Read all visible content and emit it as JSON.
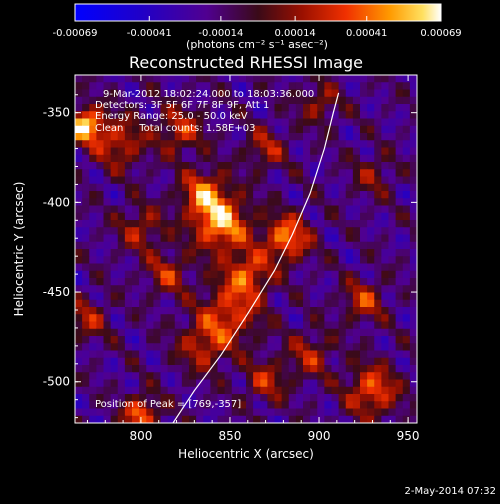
{
  "chart_data": {
    "type": "heatmap",
    "title": "Reconstructed RHESSI Image",
    "xlabel": "Heliocentric X (arcsec)",
    "ylabel": "Heliocentric Y (arcsec)",
    "xlim": [
      763,
      955
    ],
    "ylim": [
      -523,
      -329
    ],
    "x_ticks": [
      800,
      850,
      900,
      950
    ],
    "y_ticks": [
      -350,
      -400,
      -450,
      -500
    ],
    "colorbar": {
      "units": "(photons cm⁻² s⁻¹ asec⁻²)",
      "range": [
        -0.00069,
        0.00069
      ],
      "ticks": [
        -0.00069,
        -0.00041,
        -0.00014,
        0.00014,
        0.00041,
        0.00069
      ],
      "tick_labels": [
        "-0.00069",
        "-0.00041",
        "-0.00014",
        "0.00014",
        "0.00041",
        "0.00069"
      ]
    },
    "annotations": [
      "9-Mar-2012 18:02:24.000 to 18:03:36.000",
      "Detectors: 3F 5F 6F 7F 8F 9F, Att 1",
      "Energy Range: 25.0 - 50.0 keV",
      "Clean     Total counts: 1.58E+03",
      "Position of Peak = [769,-357]"
    ],
    "peak": {
      "x": 769,
      "y": -357
    },
    "limb_curve": [
      [
        818,
        -523
      ],
      [
        830,
        -505
      ],
      [
        845,
        -485
      ],
      [
        860,
        -462
      ],
      [
        875,
        -438
      ],
      [
        885,
        -418
      ],
      [
        895,
        -395
      ],
      [
        903,
        -370
      ],
      [
        908,
        -350
      ],
      [
        911,
        -339
      ]
    ],
    "sources": [
      {
        "x": 769,
        "y": -357,
        "amp": 1.0,
        "r": 7
      },
      {
        "x": 788,
        "y": -367,
        "amp": 0.55,
        "r": 10
      },
      {
        "x": 845,
        "y": -412,
        "amp": 0.9,
        "r": 11
      },
      {
        "x": 835,
        "y": -395,
        "amp": 0.7,
        "r": 9
      },
      {
        "x": 882,
        "y": -420,
        "amp": 0.8,
        "r": 9
      },
      {
        "x": 860,
        "y": -440,
        "amp": 0.65,
        "r": 9
      },
      {
        "x": 850,
        "y": -462,
        "amp": 0.6,
        "r": 12
      },
      {
        "x": 835,
        "y": -480,
        "amp": 0.5,
        "r": 10
      },
      {
        "x": 800,
        "y": -518,
        "amp": 0.75,
        "r": 7
      },
      {
        "x": 930,
        "y": -505,
        "amp": 0.7,
        "r": 10
      },
      {
        "x": 925,
        "y": -455,
        "amp": 0.55,
        "r": 8
      },
      {
        "x": 822,
        "y": -360,
        "amp": 0.55,
        "r": 9
      },
      {
        "x": 800,
        "y": -415,
        "amp": 0.45,
        "r": 9
      },
      {
        "x": 870,
        "y": -370,
        "amp": 0.45,
        "r": 8
      },
      {
        "x": 900,
        "y": -345,
        "amp": 0.4,
        "r": 8
      },
      {
        "x": 930,
        "y": -385,
        "amp": 0.35,
        "r": 8
      },
      {
        "x": 770,
        "y": -465,
        "amp": 0.45,
        "r": 8
      },
      {
        "x": 895,
        "y": -485,
        "amp": 0.45,
        "r": 9
      },
      {
        "x": 815,
        "y": -440,
        "amp": 0.5,
        "r": 8
      },
      {
        "x": 870,
        "y": -500,
        "amp": 0.5,
        "r": 8
      }
    ]
  },
  "footer": {
    "timestamp": "2-May-2014 07:32"
  }
}
